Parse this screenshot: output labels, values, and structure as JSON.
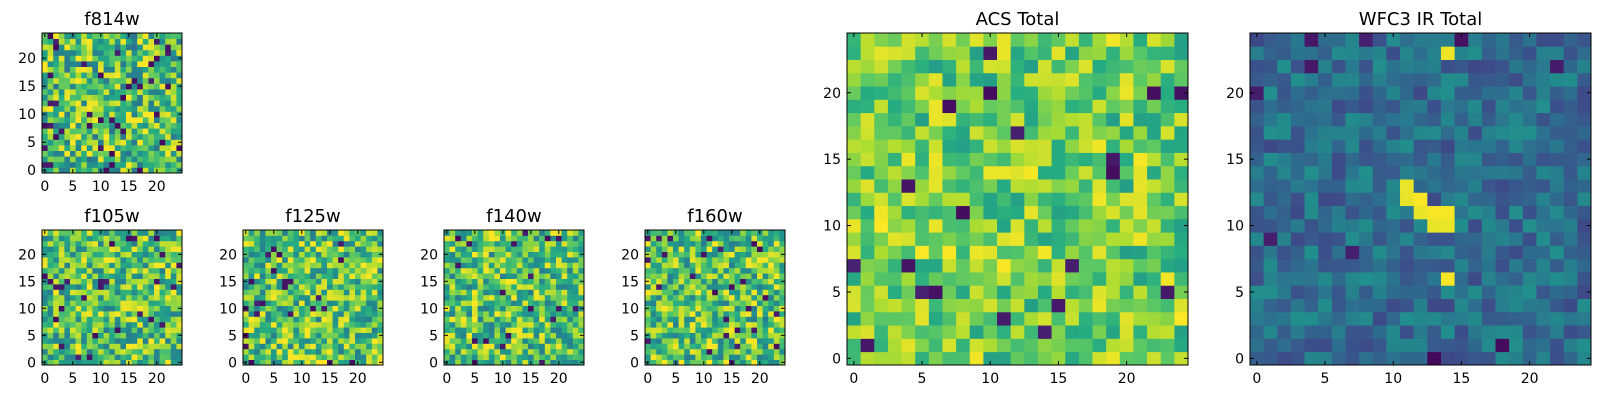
{
  "figure": {
    "background": "#ffffff",
    "colormap": "viridis"
  },
  "chart_data": [
    {
      "type": "heatmap",
      "title": "f814w",
      "grid_size": [
        25,
        25
      ],
      "xlim": [
        0,
        24
      ],
      "ylim": [
        0,
        24
      ],
      "xticks": [
        0,
        5,
        10,
        15,
        20
      ],
      "yticks": [
        0,
        5,
        10,
        15,
        20
      ],
      "pattern": {
        "seed": 11,
        "mean": 0.7,
        "spread": 0.32,
        "dark_fraction": 0.06
      }
    },
    {
      "type": "heatmap",
      "title": "f105w",
      "grid_size": [
        25,
        25
      ],
      "xlim": [
        0,
        24
      ],
      "ylim": [
        0,
        24
      ],
      "xticks": [
        0,
        5,
        10,
        15,
        20
      ],
      "yticks": [
        0,
        5,
        10,
        15,
        20
      ],
      "pattern": {
        "seed": 23,
        "mean": 0.72,
        "spread": 0.3,
        "dark_fraction": 0.04
      }
    },
    {
      "type": "heatmap",
      "title": "f125w",
      "grid_size": [
        25,
        25
      ],
      "xlim": [
        0,
        24
      ],
      "ylim": [
        0,
        24
      ],
      "xticks": [
        0,
        5,
        10,
        15,
        20
      ],
      "yticks": [
        0,
        5,
        10,
        15,
        20
      ],
      "pattern": {
        "seed": 37,
        "mean": 0.72,
        "spread": 0.3,
        "dark_fraction": 0.04
      }
    },
    {
      "type": "heatmap",
      "title": "f140w",
      "grid_size": [
        25,
        25
      ],
      "xlim": [
        0,
        24
      ],
      "ylim": [
        0,
        24
      ],
      "xticks": [
        0,
        5,
        10,
        15,
        20
      ],
      "yticks": [
        0,
        5,
        10,
        15,
        20
      ],
      "pattern": {
        "seed": 53,
        "mean": 0.72,
        "spread": 0.3,
        "dark_fraction": 0.04
      }
    },
    {
      "type": "heatmap",
      "title": "f160w",
      "grid_size": [
        25,
        25
      ],
      "xlim": [
        0,
        24
      ],
      "ylim": [
        0,
        24
      ],
      "xticks": [
        0,
        5,
        10,
        15,
        20
      ],
      "yticks": [
        0,
        5,
        10,
        15,
        20
      ],
      "pattern": {
        "seed": 71,
        "mean": 0.72,
        "spread": 0.3,
        "dark_fraction": 0.04
      }
    },
    {
      "type": "heatmap",
      "title": "ACS Total",
      "grid_size": [
        25,
        25
      ],
      "xlim": [
        0,
        24
      ],
      "ylim": [
        0,
        24
      ],
      "xticks": [
        0,
        5,
        10,
        15,
        20
      ],
      "yticks": [
        0,
        5,
        10,
        15,
        20
      ],
      "pattern": {
        "seed": 89,
        "mean": 0.78,
        "spread": 0.22,
        "dark_fraction": 0.025
      }
    },
    {
      "type": "heatmap",
      "title": "WFC3 IR Total",
      "grid_size": [
        25,
        25
      ],
      "xlim": [
        0,
        24
      ],
      "ylim": [
        0,
        24
      ],
      "xticks": [
        0,
        5,
        10,
        15,
        20
      ],
      "yticks": [
        0,
        5,
        10,
        15,
        20
      ],
      "pattern": {
        "seed": 97,
        "mean": 0.36,
        "spread": 0.14,
        "dark_fraction": 0.03
      },
      "bright_cells": [
        [
          11,
          12
        ],
        [
          12,
          12
        ],
        [
          11,
          13
        ],
        [
          12,
          11
        ],
        [
          13,
          11
        ],
        [
          14,
          11
        ],
        [
          13,
          10
        ],
        [
          14,
          10
        ],
        [
          14,
          6
        ],
        [
          14,
          23
        ]
      ]
    }
  ]
}
